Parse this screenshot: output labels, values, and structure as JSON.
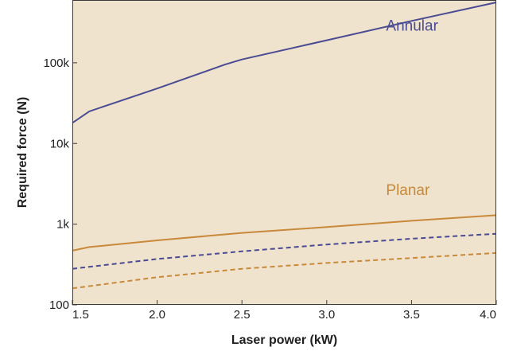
{
  "chart_data": {
    "type": "line",
    "title": "",
    "xlabel": "Laser power (kW)",
    "ylabel": "Required force (N)",
    "xlim": [
      1.5,
      4.0
    ],
    "ylim": [
      100,
      600000
    ],
    "y_scale": "log",
    "grid": false,
    "legend": "none",
    "x_ticks": [
      {
        "value": 1.5,
        "label": "1.5"
      },
      {
        "value": 2.0,
        "label": "2.0"
      },
      {
        "value": 2.5,
        "label": "2.5"
      },
      {
        "value": 3.0,
        "label": "3.0"
      },
      {
        "value": 3.5,
        "label": "3.5"
      },
      {
        "value": 4.0,
        "label": "4.0"
      }
    ],
    "y_ticks": [
      {
        "value": 100,
        "label": "100"
      },
      {
        "value": 1000,
        "label": "1k"
      },
      {
        "value": 10000,
        "label": "10k"
      },
      {
        "value": 100000,
        "label": "100k"
      }
    ],
    "background_color": "#efe3cd",
    "series": [
      {
        "name": "Annular",
        "color": "#4b4b93",
        "style": "solid",
        "label_at": {
          "x": 3.35,
          "y": 250000
        },
        "points": [
          [
            1.5,
            18000
          ],
          [
            1.6,
            25000
          ],
          [
            2.0,
            48000
          ],
          [
            2.4,
            95000
          ],
          [
            2.5,
            110000
          ],
          [
            3.0,
            190000
          ],
          [
            3.5,
            330000
          ],
          [
            4.0,
            560000
          ]
        ]
      },
      {
        "name": "Planar",
        "color": "#c9893b",
        "style": "solid",
        "label_at": {
          "x": 3.35,
          "y": 2300
        },
        "points": [
          [
            1.5,
            470
          ],
          [
            1.6,
            520
          ],
          [
            2.0,
            630
          ],
          [
            2.5,
            780
          ],
          [
            3.0,
            920
          ],
          [
            3.5,
            1100
          ],
          [
            4.0,
            1290
          ]
        ]
      },
      {
        "name": "",
        "color": "#4b4b93",
        "style": "dashed",
        "points": [
          [
            1.5,
            280
          ],
          [
            2.0,
            370
          ],
          [
            2.5,
            460
          ],
          [
            3.0,
            560
          ],
          [
            3.5,
            660
          ],
          [
            4.0,
            760
          ]
        ]
      },
      {
        "name": "",
        "color": "#c9893b",
        "style": "dashed",
        "points": [
          [
            1.5,
            160
          ],
          [
            2.0,
            220
          ],
          [
            2.5,
            280
          ],
          [
            3.0,
            330
          ],
          [
            3.5,
            380
          ],
          [
            4.0,
            440
          ]
        ]
      }
    ]
  }
}
